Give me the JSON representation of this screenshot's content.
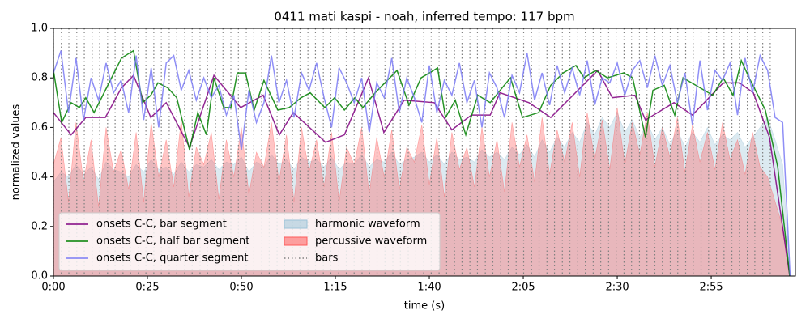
{
  "chart_data": {
    "type": "line",
    "title": "0411 mati kaspi - noah, inferred tempo: 117 bpm",
    "xlabel": "time (s)",
    "ylabel": "normalized values",
    "xlim": [
      0,
      197.4
    ],
    "ylim": [
      0,
      1
    ],
    "xticks": [
      {
        "value": 0,
        "label": "0:00"
      },
      {
        "value": 25,
        "label": "0:25"
      },
      {
        "value": 50,
        "label": "0:50"
      },
      {
        "value": 75,
        "label": "1:15"
      },
      {
        "value": 100,
        "label": "1:40"
      },
      {
        "value": 125,
        "label": "2:05"
      },
      {
        "value": 150,
        "label": "2:30"
      },
      {
        "value": 175,
        "label": "2:55"
      }
    ],
    "yticks": [
      {
        "value": 0,
        "label": "0.0"
      },
      0.2,
      0.4,
      0.6,
      0.8,
      {
        "value": 1,
        "label": "1.0"
      }
    ],
    "legend": "lower left",
    "series": [
      {
        "name": "onsets C-C, bar segment",
        "type": "line",
        "color": "#800080",
        "x": [
          0,
          4.7,
          8.6,
          13.8,
          18.1,
          21.3,
          25.9,
          30.0,
          36.2,
          42.7,
          49.8,
          55.8,
          60.1,
          63.8,
          72.4,
          77.4,
          83.8,
          87.9,
          93.3,
          101.3,
          106.0,
          111.2,
          116.2,
          118.8,
          126.5,
          132.3,
          144.8,
          148.7,
          154.7,
          157.5,
          165.1,
          170.0,
          178.2,
          182.5,
          186.2,
          190.5,
          195.9
        ],
        "values": [
          0.66,
          0.57,
          0.64,
          0.64,
          0.76,
          0.81,
          0.64,
          0.7,
          0.52,
          0.81,
          0.68,
          0.73,
          0.57,
          0.66,
          0.54,
          0.57,
          0.8,
          0.58,
          0.71,
          0.7,
          0.59,
          0.65,
          0.65,
          0.74,
          0.7,
          0.64,
          0.83,
          0.72,
          0.73,
          0.63,
          0.7,
          0.65,
          0.78,
          0.78,
          0.74,
          0.56,
          0.0
        ]
      },
      {
        "name": "onsets C-C, half bar segment",
        "type": "line",
        "color": "#008000",
        "x": [
          0,
          2.2,
          4.7,
          6.9,
          8.6,
          10.8,
          13.8,
          18.1,
          21.3,
          23.7,
          25.9,
          27.8,
          30.4,
          32.8,
          36.2,
          38.4,
          40.7,
          42.7,
          45.3,
          47.2,
          48.9,
          51.1,
          53.4,
          56.0,
          59.7,
          62.7,
          65.9,
          68.3,
          72.2,
          74.8,
          77.4,
          80.2,
          82.3,
          85.6,
          91.4,
          94.6,
          97.8,
          102.2,
          104.3,
          106.9,
          109.7,
          112.9,
          116.2,
          119.4,
          121.6,
          124.8,
          129.1,
          132.3,
          135.6,
          139.0,
          141.2,
          144.2,
          147.4,
          151.7,
          154.1,
          157.5,
          159.5,
          162.5,
          165.3,
          167.5,
          170.9,
          175.4,
          178.2,
          180.8,
          183.0,
          185.1,
          189.4,
          192.7,
          195.9
        ],
        "values": [
          0.83,
          0.62,
          0.7,
          0.68,
          0.72,
          0.66,
          0.75,
          0.88,
          0.91,
          0.7,
          0.73,
          0.78,
          0.76,
          0.72,
          0.51,
          0.66,
          0.57,
          0.8,
          0.68,
          0.68,
          0.82,
          0.82,
          0.67,
          0.79,
          0.67,
          0.68,
          0.72,
          0.74,
          0.68,
          0.72,
          0.67,
          0.72,
          0.68,
          0.74,
          0.83,
          0.69,
          0.8,
          0.84,
          0.64,
          0.71,
          0.57,
          0.73,
          0.7,
          0.76,
          0.8,
          0.64,
          0.66,
          0.77,
          0.82,
          0.85,
          0.8,
          0.83,
          0.8,
          0.82,
          0.8,
          0.56,
          0.75,
          0.77,
          0.65,
          0.8,
          0.77,
          0.73,
          0.8,
          0.73,
          0.87,
          0.8,
          0.67,
          0.44,
          0.0
        ]
      },
      {
        "name": "onsets C-C, quarter segment",
        "type": "line",
        "color": "#7b7bf5",
        "x": [
          0,
          2,
          4,
          6,
          8,
          10,
          12,
          14,
          16,
          18,
          20,
          22,
          24,
          26,
          28,
          30,
          32,
          34,
          36,
          38,
          40,
          42,
          44,
          46,
          48,
          50,
          52,
          54,
          56,
          58,
          60,
          62,
          64,
          66,
          68,
          70,
          72,
          74,
          76,
          78,
          80,
          82,
          84,
          86,
          88,
          90,
          92,
          94,
          96,
          98,
          100,
          102,
          104,
          106,
          108,
          110,
          112,
          114,
          116,
          118,
          120,
          122,
          124,
          126,
          128,
          130,
          132,
          134,
          136,
          138,
          140,
          142,
          144,
          146,
          148,
          150,
          152,
          154,
          156,
          158,
          160,
          162,
          164,
          166,
          168,
          170,
          172,
          174,
          176,
          178,
          180,
          182,
          184,
          186,
          188,
          190,
          192,
          194,
          196
        ],
        "values": [
          0.82,
          0.91,
          0.66,
          0.88,
          0.63,
          0.8,
          0.71,
          0.86,
          0.74,
          0.79,
          0.66,
          0.89,
          0.63,
          0.84,
          0.6,
          0.86,
          0.89,
          0.75,
          0.83,
          0.71,
          0.8,
          0.72,
          0.77,
          0.65,
          0.73,
          0.51,
          0.75,
          0.62,
          0.7,
          0.89,
          0.7,
          0.79,
          0.64,
          0.82,
          0.75,
          0.86,
          0.72,
          0.6,
          0.84,
          0.78,
          0.7,
          0.8,
          0.58,
          0.78,
          0.72,
          0.88,
          0.66,
          0.8,
          0.72,
          0.62,
          0.85,
          0.66,
          0.79,
          0.73,
          0.86,
          0.7,
          0.79,
          0.6,
          0.82,
          0.76,
          0.64,
          0.81,
          0.74,
          0.9,
          0.71,
          0.82,
          0.69,
          0.85,
          0.74,
          0.84,
          0.73,
          0.87,
          0.69,
          0.8,
          0.78,
          0.86,
          0.73,
          0.83,
          0.87,
          0.76,
          0.89,
          0.77,
          0.85,
          0.7,
          0.82,
          0.61,
          0.87,
          0.67,
          0.83,
          0.79,
          0.86,
          0.65,
          0.88,
          0.74,
          0.89,
          0.83,
          0.64,
          0.62,
          0.0
        ]
      },
      {
        "name": "harmonic waveform",
        "type": "area",
        "color": "#9cc4d8",
        "x": [
          0,
          2,
          4,
          6,
          8,
          10,
          12,
          14,
          16,
          18,
          20,
          22,
          24,
          26,
          28,
          30,
          32,
          34,
          36,
          38,
          40,
          42,
          44,
          46,
          48,
          50,
          52,
          54,
          56,
          58,
          60,
          62,
          64,
          66,
          68,
          70,
          72,
          74,
          76,
          78,
          80,
          82,
          84,
          86,
          88,
          90,
          92,
          94,
          96,
          98,
          100,
          102,
          104,
          106,
          108,
          110,
          112,
          114,
          116,
          118,
          120,
          122,
          124,
          126,
          128,
          130,
          132,
          134,
          136,
          138,
          140,
          142,
          144,
          146,
          148,
          150,
          152,
          154,
          156,
          158,
          160,
          162,
          164,
          166,
          168,
          170,
          172,
          174,
          176,
          178,
          180,
          182,
          184,
          186,
          188,
          190,
          192,
          194,
          196
        ],
        "values": [
          0.38,
          0.42,
          0.4,
          0.45,
          0.41,
          0.44,
          0.39,
          0.46,
          0.43,
          0.42,
          0.4,
          0.45,
          0.42,
          0.47,
          0.43,
          0.44,
          0.41,
          0.46,
          0.42,
          0.45,
          0.44,
          0.47,
          0.43,
          0.46,
          0.45,
          0.48,
          0.42,
          0.46,
          0.44,
          0.49,
          0.45,
          0.47,
          0.43,
          0.48,
          0.46,
          0.47,
          0.44,
          0.48,
          0.43,
          0.46,
          0.45,
          0.49,
          0.44,
          0.47,
          0.46,
          0.5,
          0.45,
          0.47,
          0.48,
          0.5,
          0.46,
          0.49,
          0.45,
          0.5,
          0.47,
          0.48,
          0.46,
          0.51,
          0.48,
          0.5,
          0.47,
          0.52,
          0.49,
          0.53,
          0.48,
          0.55,
          0.5,
          0.56,
          0.52,
          0.58,
          0.54,
          0.62,
          0.57,
          0.64,
          0.6,
          0.66,
          0.58,
          0.63,
          0.56,
          0.62,
          0.55,
          0.6,
          0.53,
          0.59,
          0.52,
          0.58,
          0.54,
          0.6,
          0.53,
          0.57,
          0.55,
          0.58,
          0.52,
          0.56,
          0.6,
          0.64,
          0.55,
          0.45,
          0.0
        ]
      },
      {
        "name": "percussive waveform",
        "type": "area",
        "color": "#ff5a5a",
        "x": [
          0,
          2,
          4,
          6,
          8,
          10,
          12,
          14,
          16,
          18,
          20,
          22,
          24,
          26,
          28,
          30,
          32,
          34,
          36,
          38,
          40,
          42,
          44,
          46,
          48,
          50,
          52,
          54,
          56,
          58,
          60,
          62,
          64,
          66,
          68,
          70,
          72,
          74,
          76,
          78,
          80,
          82,
          84,
          86,
          88,
          90,
          92,
          94,
          96,
          98,
          100,
          102,
          104,
          106,
          108,
          110,
          112,
          114,
          116,
          118,
          120,
          122,
          124,
          126,
          128,
          130,
          132,
          134,
          136,
          138,
          140,
          142,
          144,
          146,
          148,
          150,
          152,
          154,
          156,
          158,
          160,
          162,
          164,
          166,
          168,
          170,
          172,
          174,
          176,
          178,
          180,
          182,
          184,
          186,
          188,
          190,
          192,
          194,
          196
        ],
        "values": [
          0.45,
          0.56,
          0.3,
          0.62,
          0.38,
          0.55,
          0.28,
          0.6,
          0.42,
          0.51,
          0.35,
          0.58,
          0.3,
          0.62,
          0.4,
          0.55,
          0.36,
          0.63,
          0.32,
          0.52,
          0.45,
          0.58,
          0.31,
          0.55,
          0.4,
          0.6,
          0.33,
          0.5,
          0.44,
          0.62,
          0.38,
          0.57,
          0.3,
          0.6,
          0.42,
          0.55,
          0.36,
          0.58,
          0.3,
          0.52,
          0.45,
          0.6,
          0.33,
          0.56,
          0.4,
          0.59,
          0.35,
          0.52,
          0.46,
          0.61,
          0.37,
          0.56,
          0.32,
          0.58,
          0.43,
          0.52,
          0.36,
          0.6,
          0.4,
          0.55,
          0.34,
          0.62,
          0.44,
          0.57,
          0.38,
          0.64,
          0.41,
          0.59,
          0.46,
          0.62,
          0.4,
          0.66,
          0.47,
          0.63,
          0.43,
          0.68,
          0.45,
          0.62,
          0.49,
          0.66,
          0.44,
          0.6,
          0.48,
          0.64,
          0.42,
          0.61,
          0.46,
          0.58,
          0.43,
          0.62,
          0.47,
          0.55,
          0.41,
          0.58,
          0.44,
          0.4,
          0.3,
          0.2,
          0.0
        ]
      },
      {
        "name": "bars",
        "type": "vlines",
        "color": "#808080",
        "x": [
          0,
          2.1,
          4.1,
          6.2,
          8.2,
          10.3,
          12.3,
          14.4,
          16.4,
          18.5,
          20.5,
          22.6,
          24.6,
          26.7,
          28.7,
          30.8,
          32.8,
          34.9,
          36.9,
          39.0,
          41.0,
          43.1,
          45.1,
          47.2,
          49.2,
          51.3,
          53.3,
          55.4,
          57.4,
          59.5,
          61.5,
          63.6,
          65.6,
          67.7,
          69.7,
          71.8,
          73.8,
          75.9,
          77.9,
          80.0,
          82.1,
          84.1,
          86.1,
          88.2,
          90.3,
          92.3,
          94.4,
          96.4,
          98.5,
          100.5,
          102.6,
          104.6,
          106.7,
          108.7,
          110.8,
          112.8,
          114.9,
          116.9,
          119.0,
          121.0,
          123.1,
          125.1,
          127.2,
          129.2,
          131.3,
          133.3,
          135.4,
          137.4,
          139.5,
          141.5,
          143.6,
          145.6,
          147.7,
          149.7,
          151.8,
          153.8,
          155.9,
          157.9,
          160.0,
          162.0,
          164.1,
          166.1,
          168.2,
          170.2,
          172.3,
          174.3,
          176.4,
          178.4,
          180.5,
          182.5,
          184.6,
          186.6,
          188.7,
          190.7
        ]
      }
    ]
  }
}
